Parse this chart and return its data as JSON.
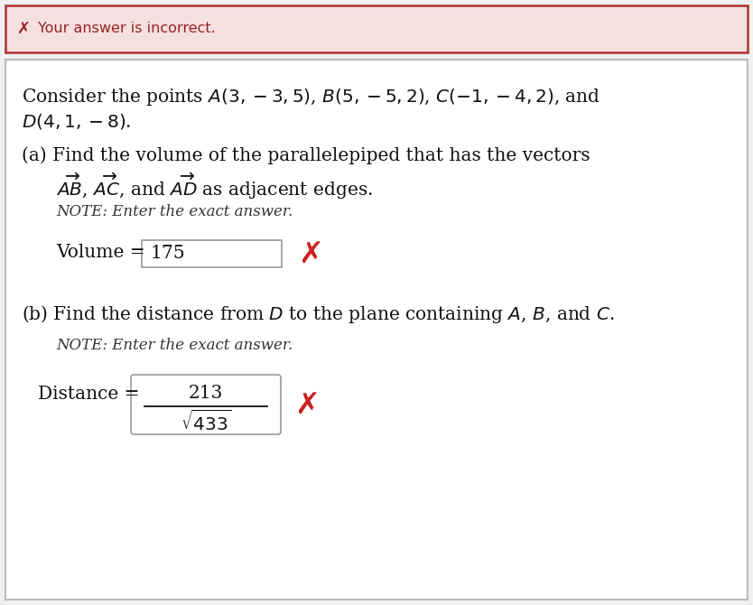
{
  "fig_width": 8.34,
  "fig_height": 6.7,
  "dpi": 100,
  "outer_bg": "#f0f0f0",
  "banner_bg": "#f5e0e0",
  "banner_border": "#b03030",
  "banner_text": "Your answer is incorrect.",
  "banner_x_color": "#992222",
  "main_bg": "#ffffff",
  "main_border": "#bbbbbb",
  "body_text_color": "#111111",
  "red_color": "#cc2222",
  "note_color": "#333333",
  "box_border": "#999999",
  "volume_value": "175",
  "distance_numerator": "213",
  "font_size_main": 14.5,
  "font_size_note": 12.0,
  "font_size_x": 24
}
